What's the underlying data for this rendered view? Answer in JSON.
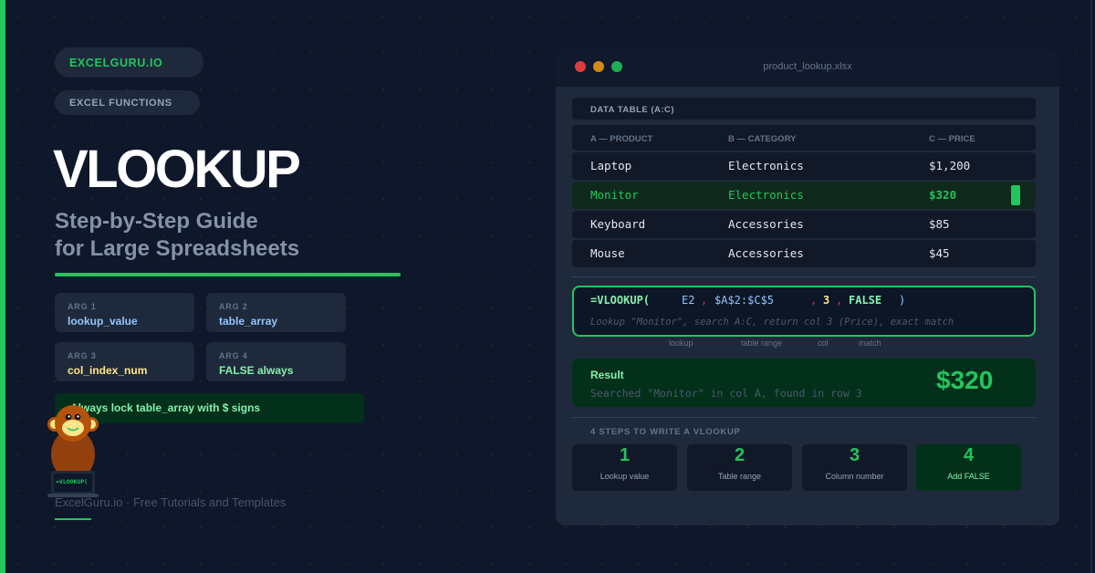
{
  "brand": "EXCELGURU.IO",
  "category": "EXCEL FUNCTIONS",
  "title": "VLOOKUP",
  "subtitle": [
    "Step-by-Step Guide",
    "for Large Spreadsheets"
  ],
  "args": [
    {
      "label": "ARG 1",
      "value": "lookup_value",
      "color": "#93c5fd"
    },
    {
      "label": "ARG 2",
      "value": "table_array",
      "color": "#93c5fd"
    },
    {
      "label": "ARG 3",
      "value": "col_index_num",
      "color": "#fde68a"
    },
    {
      "label": "ARG 4",
      "value": "FALSE always",
      "color": "#86efac"
    }
  ],
  "callout": "Always lock table_array with $ signs",
  "mascot_screen": "=VLOOKUP(",
  "footer": "ExcelGuru.io · Free Tutorials and Templates",
  "window": {
    "filename": "product_lookup.xlsx",
    "table_title": "DATA TABLE (A:C)",
    "columns": [
      "A — PRODUCT",
      "B — CATEGORY",
      "C — PRICE"
    ],
    "rows": [
      [
        "Laptop",
        "Electronics",
        "$1,200"
      ],
      [
        "Monitor",
        "Electronics",
        "$320"
      ],
      [
        "Keyboard",
        "Accessories",
        "$85"
      ],
      [
        "Mouse",
        "Accessories",
        "$45"
      ]
    ],
    "highlight_row": 1,
    "formula": {
      "fn": "=VLOOKUP(",
      "lookup": "E2",
      "sep": ",",
      "range": "$A$2:$C$5",
      "col": "3",
      "match": "FALSE",
      "close": ")",
      "description": "Lookup \"Monitor\", search A:C, return col 3 (Price), exact match",
      "labels": [
        "lookup",
        "table range",
        "col",
        "match"
      ]
    },
    "result": {
      "label": "Result",
      "detail": "Searched \"Monitor\" in col A, found in row 3",
      "value": "$320"
    },
    "steps_title": "4 STEPS TO WRITE A VLOOKUP",
    "steps": [
      {
        "n": "1",
        "t": "Lookup value"
      },
      {
        "n": "2",
        "t": "Table range"
      },
      {
        "n": "3",
        "t": "Column number"
      },
      {
        "n": "4",
        "t": "Add FALSE"
      }
    ]
  },
  "colors": {
    "accent": "#22c55e",
    "background": "#0f172a",
    "panel": "#1e293b"
  }
}
